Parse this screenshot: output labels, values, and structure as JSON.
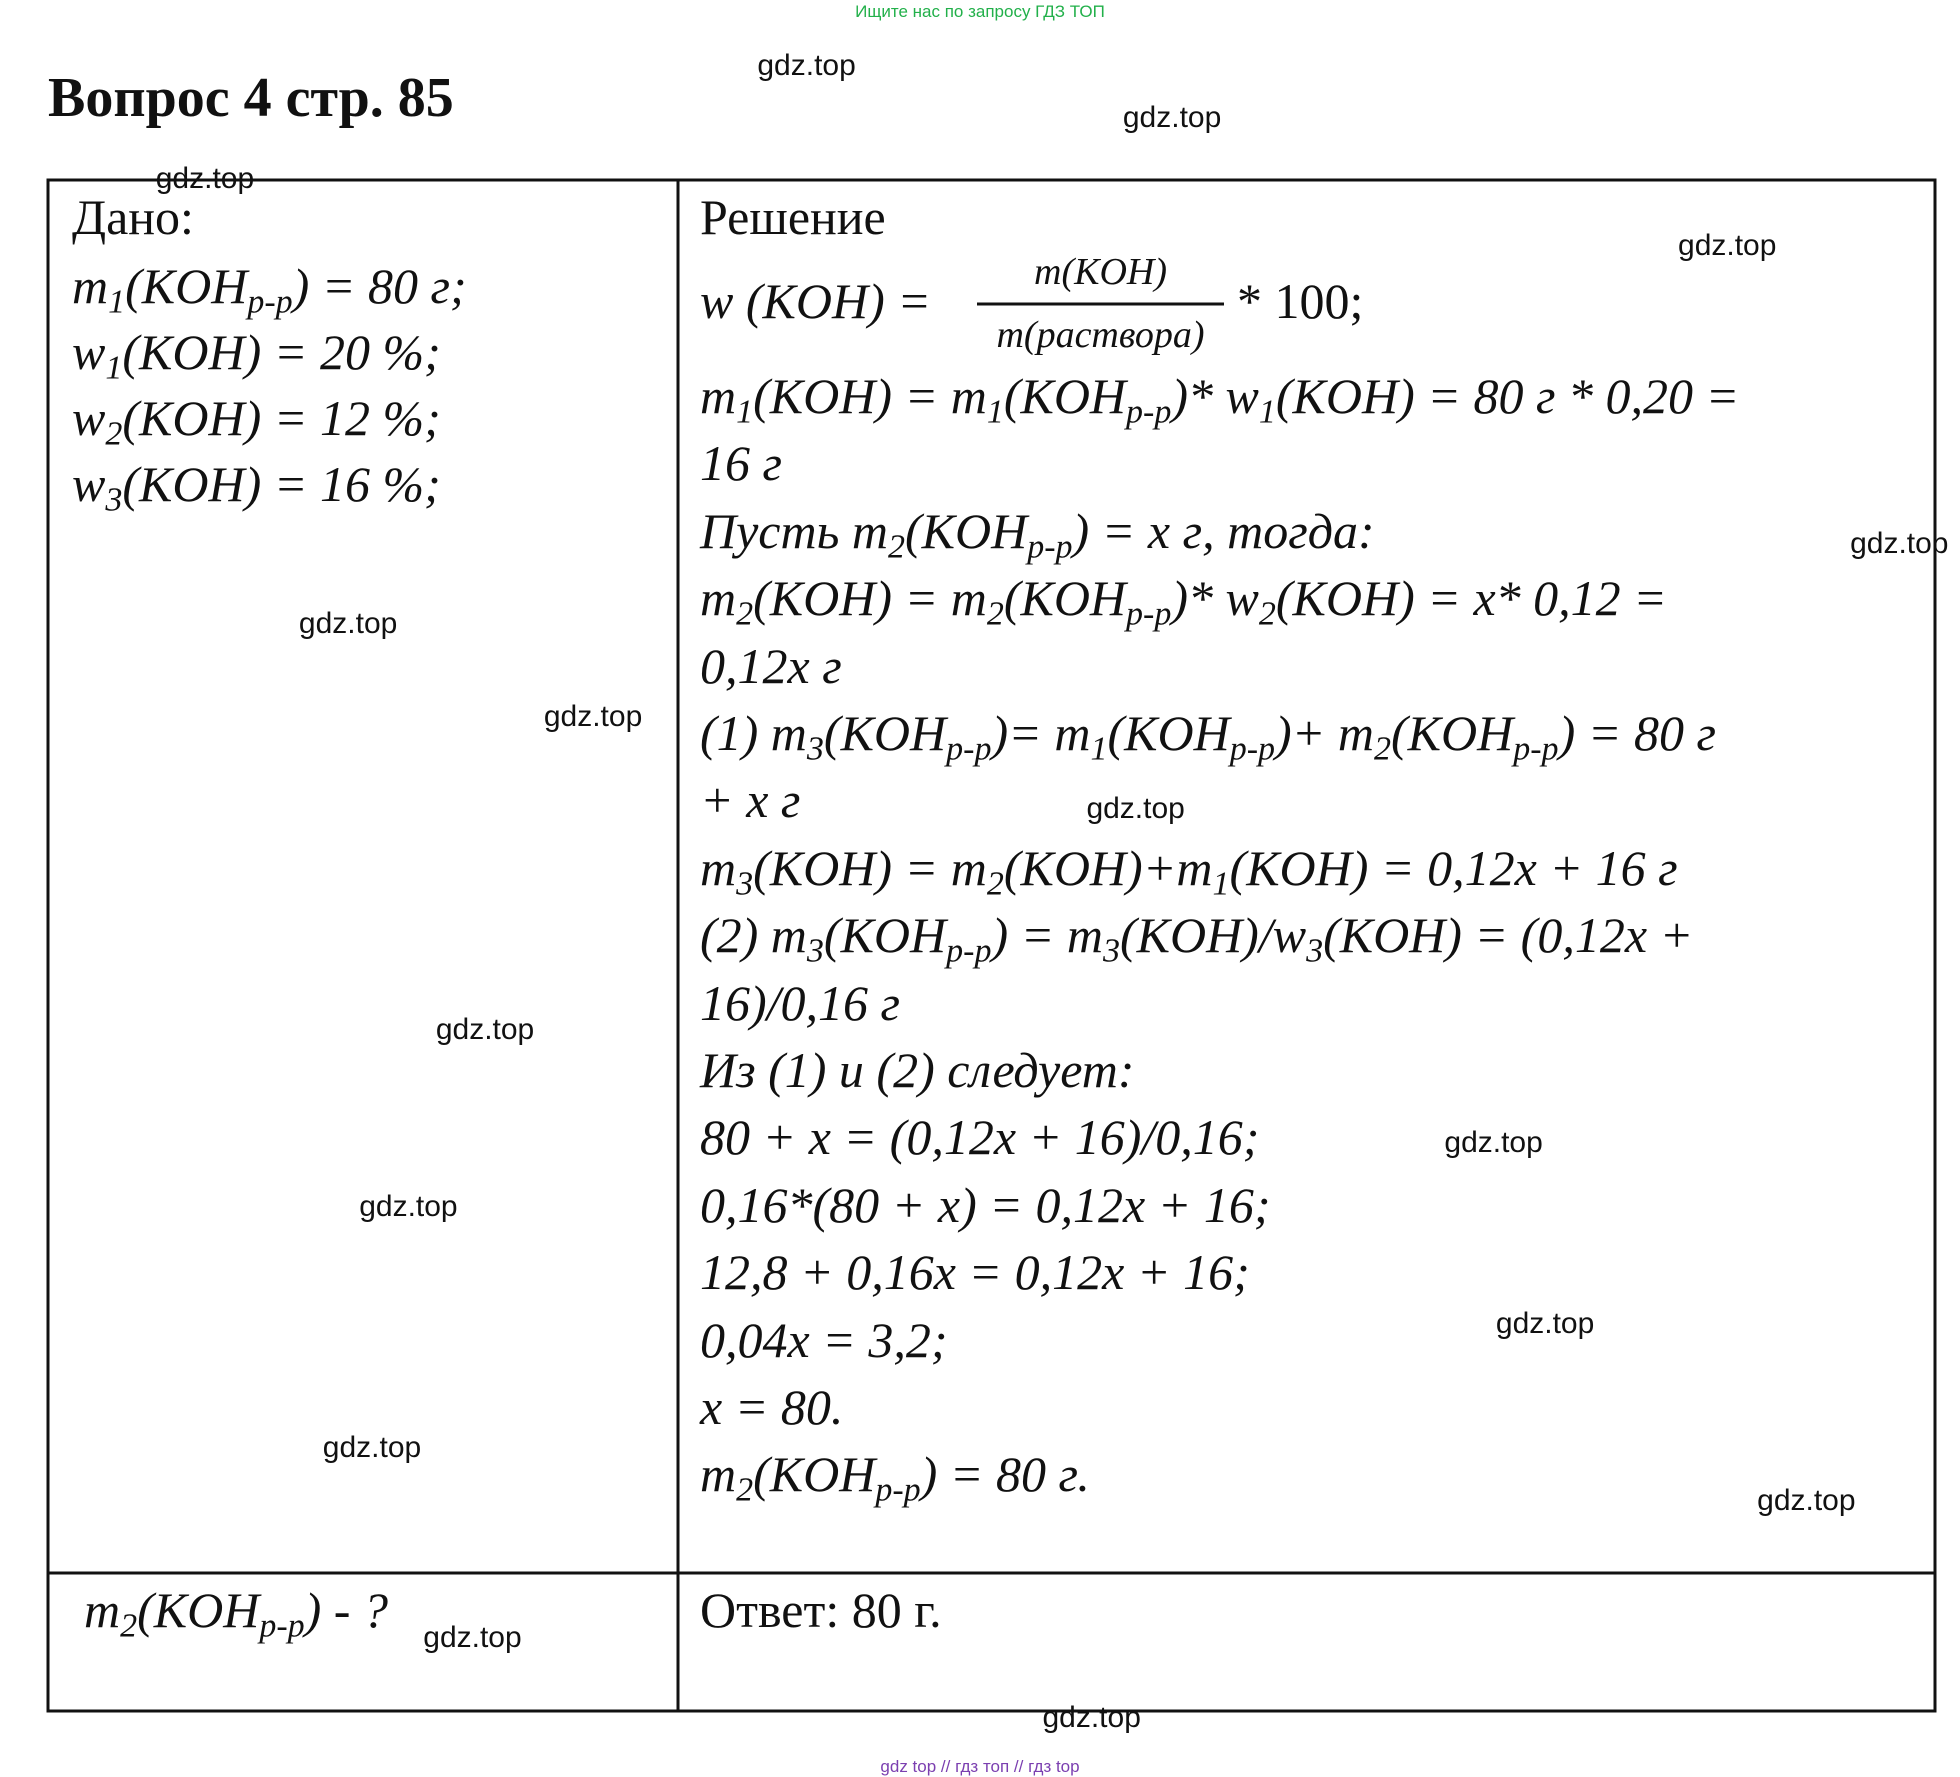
{
  "top_banner": "Ищите нас по запросу ГДЗ ТОП",
  "title": "Вопрос 4 стр. 85",
  "given": {
    "heading": "Дано:",
    "lines": [
      [
        "m",
        "1",
        "(KOH",
        "р-р",
        ") = 80 г;"
      ],
      [
        "w",
        "1",
        "(KOH) = 20 %;"
      ],
      [
        "w",
        "2",
        "(KOH) = 12 %;"
      ],
      [
        "w",
        "3",
        "(KOH) = 16 %;"
      ]
    ]
  },
  "solution": {
    "heading": "Решение",
    "formula": {
      "lhs": "w (KOH) =",
      "numerator": "m(KOH)",
      "denominator": "m(раствора)",
      "rhs": "* 100;"
    },
    "lines": [
      [
        "m",
        "1",
        "(KOH) = m",
        "1",
        "(KOH",
        "р-р",
        ")* w",
        "1",
        "(KOH) = 80 г * 0,20 ="
      ],
      [
        "16 г"
      ],
      [
        "Пусть m",
        "2",
        "(KOH",
        "р-р",
        ") = x г, тогда:"
      ],
      [
        "m",
        "2",
        "(KOH) = m",
        "2",
        "(KOH",
        "р-р",
        ")* w",
        "2",
        "(KOH) = x* 0,12 ="
      ],
      [
        "0,12x г"
      ],
      [
        "(1) m",
        "3",
        "(KOH",
        "р-р",
        ")= m",
        "1",
        "(KOH",
        "р-р",
        ")+ m",
        "2",
        "(KOH",
        "р-р",
        ") = 80 г"
      ],
      [
        "+ x г"
      ],
      [
        "m",
        "3",
        "(KOH) = m",
        "2",
        "(KOH)+m",
        "1",
        "(KOH) = 0,12x + 16 г"
      ],
      [
        "(2) m",
        "3",
        "(KOH",
        "р-р",
        ") = m",
        "3",
        "(KOH)/w",
        "3",
        "(KOH) = (0,12x +"
      ],
      [
        "16)/0,16 г"
      ],
      [
        "Из (1) и (2) следует:"
      ],
      [
        "80 + x = (0,12x + 16)/0,16;"
      ],
      [
        "0,16*(80 + x) = 0,12x + 16;"
      ],
      [
        "12,8 + 0,16x = 0,12x + 16;"
      ],
      [
        "0,04x = 3,2;"
      ],
      [
        "x = 80."
      ],
      [
        "m",
        "2",
        "(KOH",
        "р-р",
        ") = 80 г."
      ]
    ]
  },
  "find": [
    "m",
    "2",
    "(KOH",
    "р-р",
    ") - ?"
  ],
  "answer": "Ответ: 80 г.",
  "watermarks": [
    "gdz.top",
    "gdz.top",
    "gdz.top",
    "gdz.top",
    "gdz.top",
    "gdz.top",
    "gdz.top",
    "gdz.top",
    "gdz.top",
    "gdz.top",
    "gdz.top",
    "gdz.top",
    "gdz.top",
    "gdz.top",
    "gdz.top",
    "gdz.top"
  ],
  "footer": "gdz top  //  гдз топ  //  гдз top"
}
